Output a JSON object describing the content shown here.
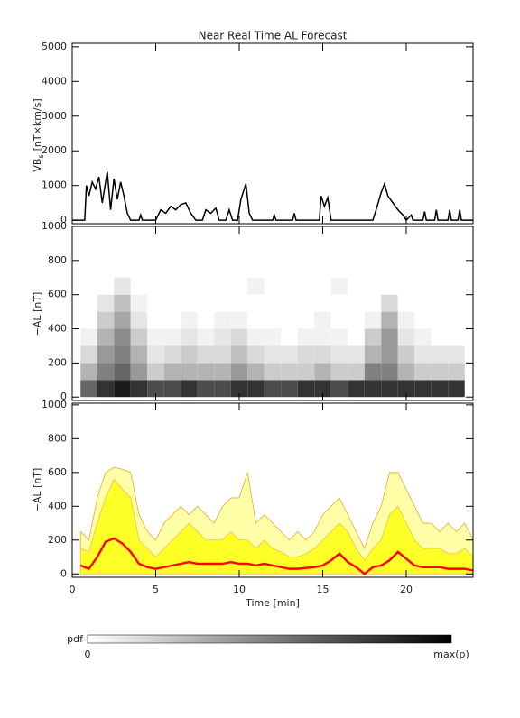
{
  "chart_data": [
    {
      "type": "line",
      "title": "Near Real Time AL Forecast",
      "ylabel": [
        "VB",
        "s",
        "[nT×km/s]"
      ],
      "xlim": [
        0,
        24
      ],
      "xticks": [
        0,
        5,
        10,
        15,
        20
      ],
      "ylim": [
        -100,
        5100
      ],
      "yticks": [
        0,
        1000,
        2000,
        3000,
        4000,
        5000
      ],
      "color": "#000000",
      "x": [
        0,
        0.75,
        0.85,
        1.0,
        1.2,
        1.4,
        1.6,
        1.8,
        2.1,
        2.3,
        2.5,
        2.7,
        2.9,
        3.1,
        3.3,
        3.5,
        4.0,
        4.1,
        4.2,
        5.0,
        5.3,
        5.6,
        5.9,
        6.2,
        6.5,
        6.8,
        7.1,
        7.4,
        7.8,
        8.0,
        8.3,
        8.6,
        8.8,
        9.2,
        9.4,
        9.6,
        9.9,
        10.1,
        10.4,
        10.6,
        10.8,
        12.0,
        12.1,
        12.2,
        13.2,
        13.3,
        13.4,
        14.8,
        14.9,
        15.1,
        15.3,
        15.5,
        18.0,
        18.2,
        18.5,
        18.7,
        18.9,
        19.2,
        19.5,
        19.8,
        20.0,
        20.3,
        20.4,
        21.0,
        21.1,
        21.2,
        21.7,
        21.8,
        21.9,
        22.5,
        22.6,
        22.7,
        23.1,
        23.2,
        23.3,
        24
      ],
      "values": [
        0,
        0,
        1000,
        700,
        1100,
        900,
        1250,
        500,
        1400,
        300,
        1200,
        600,
        1100,
        700,
        200,
        0,
        0,
        150,
        0,
        0,
        300,
        200,
        400,
        300,
        450,
        500,
        200,
        0,
        0,
        300,
        200,
        350,
        0,
        0,
        300,
        0,
        0,
        600,
        1050,
        200,
        0,
        0,
        150,
        0,
        0,
        200,
        0,
        0,
        700,
        400,
        650,
        0,
        0,
        300,
        800,
        1050,
        700,
        500,
        300,
        150,
        0,
        150,
        0,
        0,
        250,
        0,
        0,
        300,
        0,
        0,
        300,
        0,
        0,
        300,
        0,
        0
      ]
    },
    {
      "type": "heatmap",
      "ylabel": "−AL [nT]",
      "xlim": [
        0,
        24
      ],
      "xticks": [
        0,
        5,
        10,
        15,
        20
      ],
      "ylim": [
        -20,
        1000
      ],
      "yticks": [
        0,
        200,
        400,
        600,
        800,
        1000
      ],
      "cmap": [
        "#ffffff",
        "#000000"
      ],
      "colorbar": {
        "label": "pdf",
        "min_label": "0",
        "max_label": "max(p)"
      },
      "xbins": [
        0.5,
        1.5,
        2.5,
        3.5,
        4.5,
        5.5,
        6.5,
        7.5,
        8.5,
        9.5,
        10.5,
        11.5,
        12.5,
        13.5,
        14.5,
        15.5,
        16.5,
        17.5,
        18.5,
        19.5,
        20.5,
        21.5,
        22.5,
        23.5
      ],
      "ybins": [
        0,
        100,
        200,
        300,
        400,
        500,
        600,
        700
      ],
      "z": [
        [
          0.6,
          0.8,
          0.9,
          0.8,
          0.7,
          0.7,
          0.8,
          0.7,
          0.7,
          0.8,
          0.8,
          0.7,
          0.7,
          0.8,
          0.8,
          0.7,
          0.8,
          0.8,
          0.8,
          0.8,
          0.8,
          0.8,
          0.8
        ],
        [
          0.3,
          0.5,
          0.6,
          0.4,
          0.2,
          0.3,
          0.3,
          0.3,
          0.3,
          0.4,
          0.3,
          0.2,
          0.2,
          0.2,
          0.3,
          0.2,
          0.2,
          0.5,
          0.5,
          0.3,
          0.2,
          0.2,
          0.2
        ],
        [
          0.15,
          0.4,
          0.5,
          0.3,
          0.1,
          0.15,
          0.2,
          0.15,
          0.15,
          0.25,
          0.15,
          0.1,
          0.1,
          0.15,
          0.15,
          0.1,
          0.1,
          0.3,
          0.4,
          0.2,
          0.1,
          0.1,
          0.1
        ],
        [
          0.05,
          0.3,
          0.45,
          0.2,
          0.05,
          0.05,
          0.1,
          0.05,
          0.1,
          0.15,
          0.05,
          0.05,
          0,
          0.05,
          0.05,
          0.05,
          0,
          0.2,
          0.4,
          0.1,
          0.05,
          0,
          0
        ],
        [
          0,
          0.2,
          0.35,
          0.1,
          0,
          0,
          0.05,
          0,
          0.05,
          0.05,
          0,
          0,
          0,
          0,
          0.05,
          0,
          0,
          0.05,
          0.3,
          0.05,
          0,
          0,
          0
        ],
        [
          0,
          0.1,
          0.25,
          0.05,
          0,
          0,
          0,
          0,
          0,
          0,
          0,
          0,
          0,
          0,
          0,
          0,
          0,
          0,
          0.15,
          0,
          0,
          0,
          0
        ],
        [
          0,
          0,
          0.1,
          0,
          0,
          0,
          0,
          0,
          0,
          0,
          0.05,
          0,
          0,
          0,
          0,
          0.05,
          0,
          0,
          0,
          0,
          0,
          0,
          0
        ]
      ]
    },
    {
      "type": "area",
      "ylabel": "−AL [nT]",
      "xlabel": "Time [min]",
      "xlim": [
        0,
        24
      ],
      "xticks": [
        0,
        5,
        10,
        15,
        20
      ],
      "ylim": [
        -20,
        1010
      ],
      "yticks": [
        0,
        200,
        400,
        600,
        800,
        1000
      ],
      "x": [
        0.5,
        1,
        1.5,
        2,
        2.5,
        3,
        3.5,
        4,
        4.5,
        5,
        5.5,
        6,
        6.5,
        7,
        7.5,
        8,
        8.5,
        9,
        9.5,
        10,
        10.5,
        11,
        11.5,
        12,
        12.5,
        13,
        13.5,
        14,
        14.5,
        15,
        15.5,
        16,
        16.5,
        17,
        17.5,
        18,
        18.5,
        19,
        19.5,
        20,
        20.5,
        21,
        21.5,
        22,
        22.5,
        23,
        23.5,
        24
      ],
      "series": [
        {
          "style": "area",
          "color": "#ffffa8",
          "line_color": "#f0a830",
          "values": [
            250,
            200,
            450,
            600,
            630,
            620,
            600,
            350,
            250,
            200,
            300,
            350,
            400,
            350,
            400,
            350,
            300,
            400,
            450,
            450,
            600,
            300,
            350,
            300,
            250,
            200,
            250,
            200,
            250,
            350,
            400,
            450,
            350,
            250,
            150,
            300,
            400,
            600,
            600,
            500,
            400,
            300,
            300,
            250,
            300,
            250,
            300,
            200
          ]
        },
        {
          "style": "area",
          "color": "#ffff28",
          "line_color": "#f0c040",
          "values": [
            150,
            130,
            300,
            450,
            560,
            500,
            450,
            200,
            150,
            100,
            150,
            200,
            250,
            300,
            250,
            200,
            200,
            200,
            250,
            200,
            200,
            150,
            200,
            150,
            130,
            100,
            100,
            120,
            150,
            200,
            250,
            300,
            250,
            150,
            80,
            150,
            200,
            350,
            400,
            300,
            200,
            150,
            150,
            150,
            120,
            120,
            150,
            100
          ]
        },
        {
          "style": "line",
          "color": "#ff0000",
          "values": [
            50,
            30,
            100,
            190,
            210,
            180,
            130,
            60,
            40,
            30,
            40,
            50,
            60,
            70,
            60,
            60,
            60,
            60,
            70,
            60,
            60,
            50,
            60,
            50,
            40,
            30,
            30,
            35,
            40,
            50,
            80,
            120,
            70,
            40,
            0,
            40,
            50,
            80,
            130,
            90,
            50,
            40,
            40,
            40,
            30,
            30,
            30,
            20
          ]
        }
      ]
    }
  ]
}
